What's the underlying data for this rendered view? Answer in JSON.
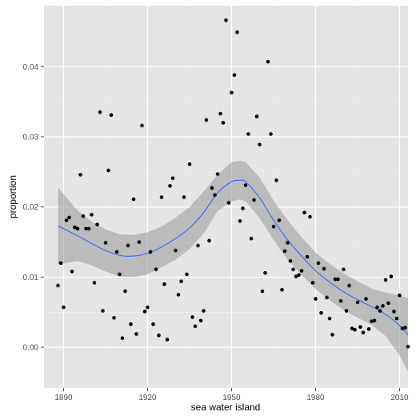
{
  "chart_data": {
    "type": "scatter",
    "title": "",
    "xlabel": "sea water island",
    "ylabel": "proportion",
    "xlim": [
      1883,
      2013
    ],
    "ylim": [
      -0.0058,
      0.0487
    ],
    "x_ticks": [
      1890,
      1920,
      1950,
      1980,
      2010
    ],
    "x_tick_labels": [
      "1890",
      "1920",
      "1950",
      "1980",
      "2010"
    ],
    "y_ticks": [
      0.0,
      0.01,
      0.02,
      0.03,
      0.04
    ],
    "y_tick_labels": [
      "0.00",
      "0.01",
      "0.02",
      "0.03",
      "0.04"
    ],
    "grid": true,
    "background": "#e5e5e5",
    "points": [
      [
        1888,
        0.0088
      ],
      [
        1889,
        0.012
      ],
      [
        1890,
        0.0057
      ],
      [
        1891,
        0.0181
      ],
      [
        1892,
        0.0185
      ],
      [
        1893,
        0.0108
      ],
      [
        1894,
        0.0171
      ],
      [
        1895,
        0.0169
      ],
      [
        1896,
        0.0246
      ],
      [
        1897,
        0.0187
      ],
      [
        1898,
        0.0169
      ],
      [
        1899,
        0.0169
      ],
      [
        1900,
        0.0189
      ],
      [
        1901,
        0.0092
      ],
      [
        1902,
        0.0175
      ],
      [
        1903,
        0.0335
      ],
      [
        1904,
        0.0052
      ],
      [
        1905,
        0.0149
      ],
      [
        1906,
        0.0252
      ],
      [
        1907,
        0.0331
      ],
      [
        1908,
        0.0042
      ],
      [
        1909,
        0.0136
      ],
      [
        1910,
        0.0104
      ],
      [
        1911,
        0.0013
      ],
      [
        1912,
        0.008
      ],
      [
        1913,
        0.0145
      ],
      [
        1914,
        0.0033
      ],
      [
        1915,
        0.0211
      ],
      [
        1916,
        0.0019
      ],
      [
        1917,
        0.015
      ],
      [
        1918,
        0.0316
      ],
      [
        1919,
        0.0051
      ],
      [
        1920,
        0.0057
      ],
      [
        1921,
        0.0136
      ],
      [
        1922,
        0.0033
      ],
      [
        1923,
        0.0111
      ],
      [
        1924,
        0.0017
      ],
      [
        1925,
        0.0214
      ],
      [
        1926,
        0.009
      ],
      [
        1927,
        0.0011
      ],
      [
        1928,
        0.023
      ],
      [
        1929,
        0.0241
      ],
      [
        1930,
        0.0138
      ],
      [
        1931,
        0.0075
      ],
      [
        1932,
        0.0094
      ],
      [
        1933,
        0.0214
      ],
      [
        1934,
        0.0104
      ],
      [
        1935,
        0.0261
      ],
      [
        1936,
        0.0043
      ],
      [
        1937,
        0.003
      ],
      [
        1938,
        0.0145
      ],
      [
        1939,
        0.0038
      ],
      [
        1940,
        0.0052
      ],
      [
        1941,
        0.0324
      ],
      [
        1942,
        0.0152
      ],
      [
        1943,
        0.0227
      ],
      [
        1944,
        0.0217
      ],
      [
        1945,
        0.0247
      ],
      [
        1946,
        0.0333
      ],
      [
        1947,
        0.032
      ],
      [
        1948,
        0.0466
      ],
      [
        1949,
        0.0206
      ],
      [
        1950,
        0.0363
      ],
      [
        1951,
        0.0388
      ],
      [
        1952,
        0.0449
      ],
      [
        1953,
        0.018
      ],
      [
        1954,
        0.0198
      ],
      [
        1955,
        0.0231
      ],
      [
        1956,
        0.0304
      ],
      [
        1957,
        0.0155
      ],
      [
        1958,
        0.021
      ],
      [
        1959,
        0.0329
      ],
      [
        1960,
        0.0289
      ],
      [
        1961,
        0.008
      ],
      [
        1962,
        0.0106
      ],
      [
        1963,
        0.0407
      ],
      [
        1964,
        0.0304
      ],
      [
        1965,
        0.0172
      ],
      [
        1966,
        0.0238
      ],
      [
        1967,
        0.0181
      ],
      [
        1968,
        0.0082
      ],
      [
        1969,
        0.0137
      ],
      [
        1970,
        0.0149
      ],
      [
        1971,
        0.0123
      ],
      [
        1972,
        0.0111
      ],
      [
        1973,
        0.0101
      ],
      [
        1974,
        0.0103
      ],
      [
        1975,
        0.0109
      ],
      [
        1976,
        0.0192
      ],
      [
        1977,
        0.0129
      ],
      [
        1978,
        0.0186
      ],
      [
        1979,
        0.0092
      ],
      [
        1980,
        0.0069
      ],
      [
        1981,
        0.012
      ],
      [
        1982,
        0.0049
      ],
      [
        1983,
        0.0112
      ],
      [
        1984,
        0.0071
      ],
      [
        1985,
        0.0041
      ],
      [
        1986,
        0.0018
      ],
      [
        1987,
        0.0097
      ],
      [
        1988,
        0.0097
      ],
      [
        1989,
        0.0066
      ],
      [
        1990,
        0.0111
      ],
      [
        1991,
        0.0052
      ],
      [
        1992,
        0.0088
      ],
      [
        1993,
        0.0027
      ],
      [
        1994,
        0.0025
      ],
      [
        1995,
        0.0064
      ],
      [
        1996,
        0.0029
      ],
      [
        1997,
        0.0021
      ],
      [
        1998,
        0.0069
      ],
      [
        1999,
        0.0026
      ],
      [
        2000,
        0.0037
      ],
      [
        2001,
        0.0038
      ],
      [
        2002,
        0.0057
      ],
      [
        2003,
        0.0052
      ],
      [
        2004,
        0.0059
      ],
      [
        2005,
        0.0096
      ],
      [
        2006,
        0.0063
      ],
      [
        2007,
        0.0101
      ],
      [
        2008,
        0.0051
      ],
      [
        2009,
        0.0041
      ],
      [
        2010,
        0.0074
      ],
      [
        2011,
        0.0027
      ],
      [
        2012,
        0.0028
      ],
      [
        2013,
        0.0001
      ]
    ],
    "smooth_fit": {
      "x": [
        1888,
        1895,
        1900,
        1905,
        1910,
        1915,
        1920,
        1925,
        1930,
        1935,
        1940,
        1945,
        1950,
        1953,
        1955,
        1960,
        1965,
        1970,
        1975,
        1980,
        1985,
        1990,
        1995,
        2000,
        2005,
        2010,
        2013
      ],
      "y": [
        0.0173,
        0.0159,
        0.0148,
        0.0138,
        0.0131,
        0.013,
        0.0134,
        0.0143,
        0.0155,
        0.017,
        0.0192,
        0.022,
        0.0236,
        0.0238,
        0.0236,
        0.0213,
        0.0181,
        0.0153,
        0.013,
        0.0109,
        0.0093,
        0.0079,
        0.0068,
        0.0058,
        0.0047,
        0.0031,
        0.0018
      ],
      "lower": [
        0.0118,
        0.0123,
        0.0117,
        0.0108,
        0.0101,
        0.01,
        0.0104,
        0.0114,
        0.0125,
        0.014,
        0.0162,
        0.0194,
        0.0208,
        0.0211,
        0.0208,
        0.0184,
        0.0153,
        0.0125,
        0.0103,
        0.0083,
        0.0067,
        0.0053,
        0.0042,
        0.0032,
        0.0016,
        -0.0012,
        -0.0034
      ],
      "upper": [
        0.0228,
        0.0195,
        0.0179,
        0.0168,
        0.0161,
        0.016,
        0.0164,
        0.0172,
        0.0185,
        0.02,
        0.0222,
        0.0246,
        0.0264,
        0.0266,
        0.0264,
        0.0242,
        0.0209,
        0.0181,
        0.0157,
        0.0135,
        0.0119,
        0.0105,
        0.0094,
        0.0084,
        0.0078,
        0.0074,
        0.007
      ],
      "line_color": "#3366ff",
      "band_color": "#999999"
    },
    "point_color": "#000000"
  }
}
